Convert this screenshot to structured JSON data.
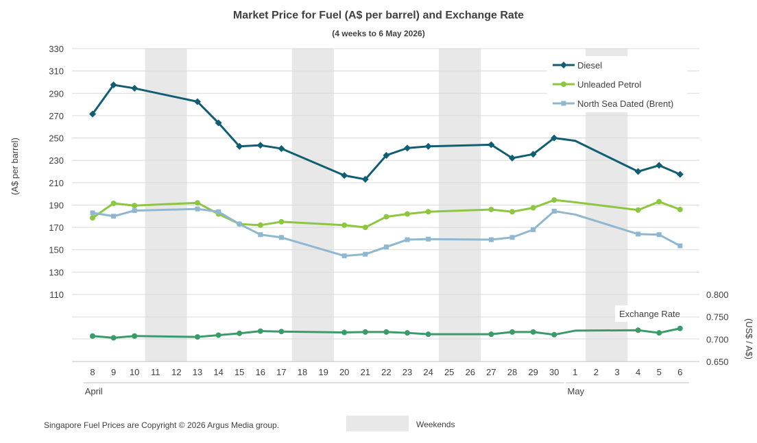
{
  "chart_data": {
    "type": "line",
    "title": "Market Price for Fuel (A$ per barrel) and Exchange Rate",
    "subtitle": "(4 weeks to 6 May 2026)",
    "ylabel": "(A$ per barrel)",
    "ylabel_right": "(US$ / A$)",
    "ylim": [
      110,
      330
    ],
    "y_ticks": [
      110,
      130,
      150,
      170,
      190,
      210,
      230,
      250,
      270,
      290,
      310,
      330
    ],
    "ylim_right": [
      0.65,
      0.8
    ],
    "y_ticks_right": [
      "0.650",
      "0.700",
      "0.750",
      "0.800"
    ],
    "grid": true,
    "legend_position": "top-right",
    "categories": [
      "8",
      "9",
      "10",
      "11",
      "12",
      "13",
      "14",
      "15",
      "16",
      "17",
      "18",
      "19",
      "20",
      "21",
      "22",
      "23",
      "24",
      "25",
      "26",
      "27",
      "28",
      "29",
      "30",
      "1",
      "2",
      "3",
      "4",
      "5",
      "6"
    ],
    "month_labels": [
      {
        "label": "April",
        "start_index": 0,
        "end_index": 22
      },
      {
        "label": "May",
        "start_index": 23,
        "end_index": 28
      }
    ],
    "weekend_bands": [
      [
        3,
        4
      ],
      [
        10,
        11
      ],
      [
        17,
        18
      ],
      [
        24,
        25
      ]
    ],
    "weekend_label": "Weekends",
    "series": [
      {
        "name": "Diesel",
        "axis": "left",
        "color": "#0f5e73",
        "marker": "diamond",
        "values": [
          271.5,
          297.5,
          294.5,
          null,
          null,
          282.5,
          263.5,
          242.5,
          243.5,
          240.5,
          null,
          null,
          216.5,
          213,
          234.5,
          241,
          242.5,
          null,
          null,
          244,
          232,
          235.5,
          250,
          247.5,
          null,
          null,
          220,
          225.5,
          217.5
        ]
      },
      {
        "name": "Unleaded Petrol",
        "axis": "left",
        "color": "#8dc63f",
        "marker": "circle",
        "values": [
          178.5,
          191.5,
          189.5,
          null,
          null,
          192,
          182,
          173,
          172,
          175,
          null,
          null,
          172,
          170,
          179.5,
          182,
          184,
          null,
          null,
          186,
          184,
          187.5,
          194.5,
          192.5,
          null,
          null,
          185.5,
          193,
          186
        ]
      },
      {
        "name": "North Sea Dated (Brent)",
        "axis": "left",
        "color": "#8fb7cf",
        "marker": "square",
        "values": [
          183,
          180,
          185,
          null,
          null,
          186.5,
          184,
          173,
          163.5,
          161,
          null,
          null,
          144.5,
          146,
          152.5,
          159,
          159.5,
          null,
          null,
          159,
          161,
          168,
          184.5,
          181.5,
          null,
          null,
          164,
          163.5,
          153.5
        ]
      },
      {
        "name": "Exchange Rate",
        "axis": "right",
        "color": "#3a9a6a",
        "marker": "circle",
        "values": [
          0.707,
          0.703,
          0.707,
          null,
          null,
          0.705,
          0.709,
          0.713,
          0.718,
          0.717,
          null,
          null,
          0.715,
          0.716,
          0.716,
          0.714,
          0.711,
          null,
          null,
          0.711,
          0.716,
          0.716,
          0.71,
          0.719,
          null,
          null,
          0.72,
          0.714,
          0.724
        ]
      }
    ]
  },
  "footer": {
    "copyright": "Singapore Fuel Prices are Copyright © 2026 Argus Media group."
  }
}
